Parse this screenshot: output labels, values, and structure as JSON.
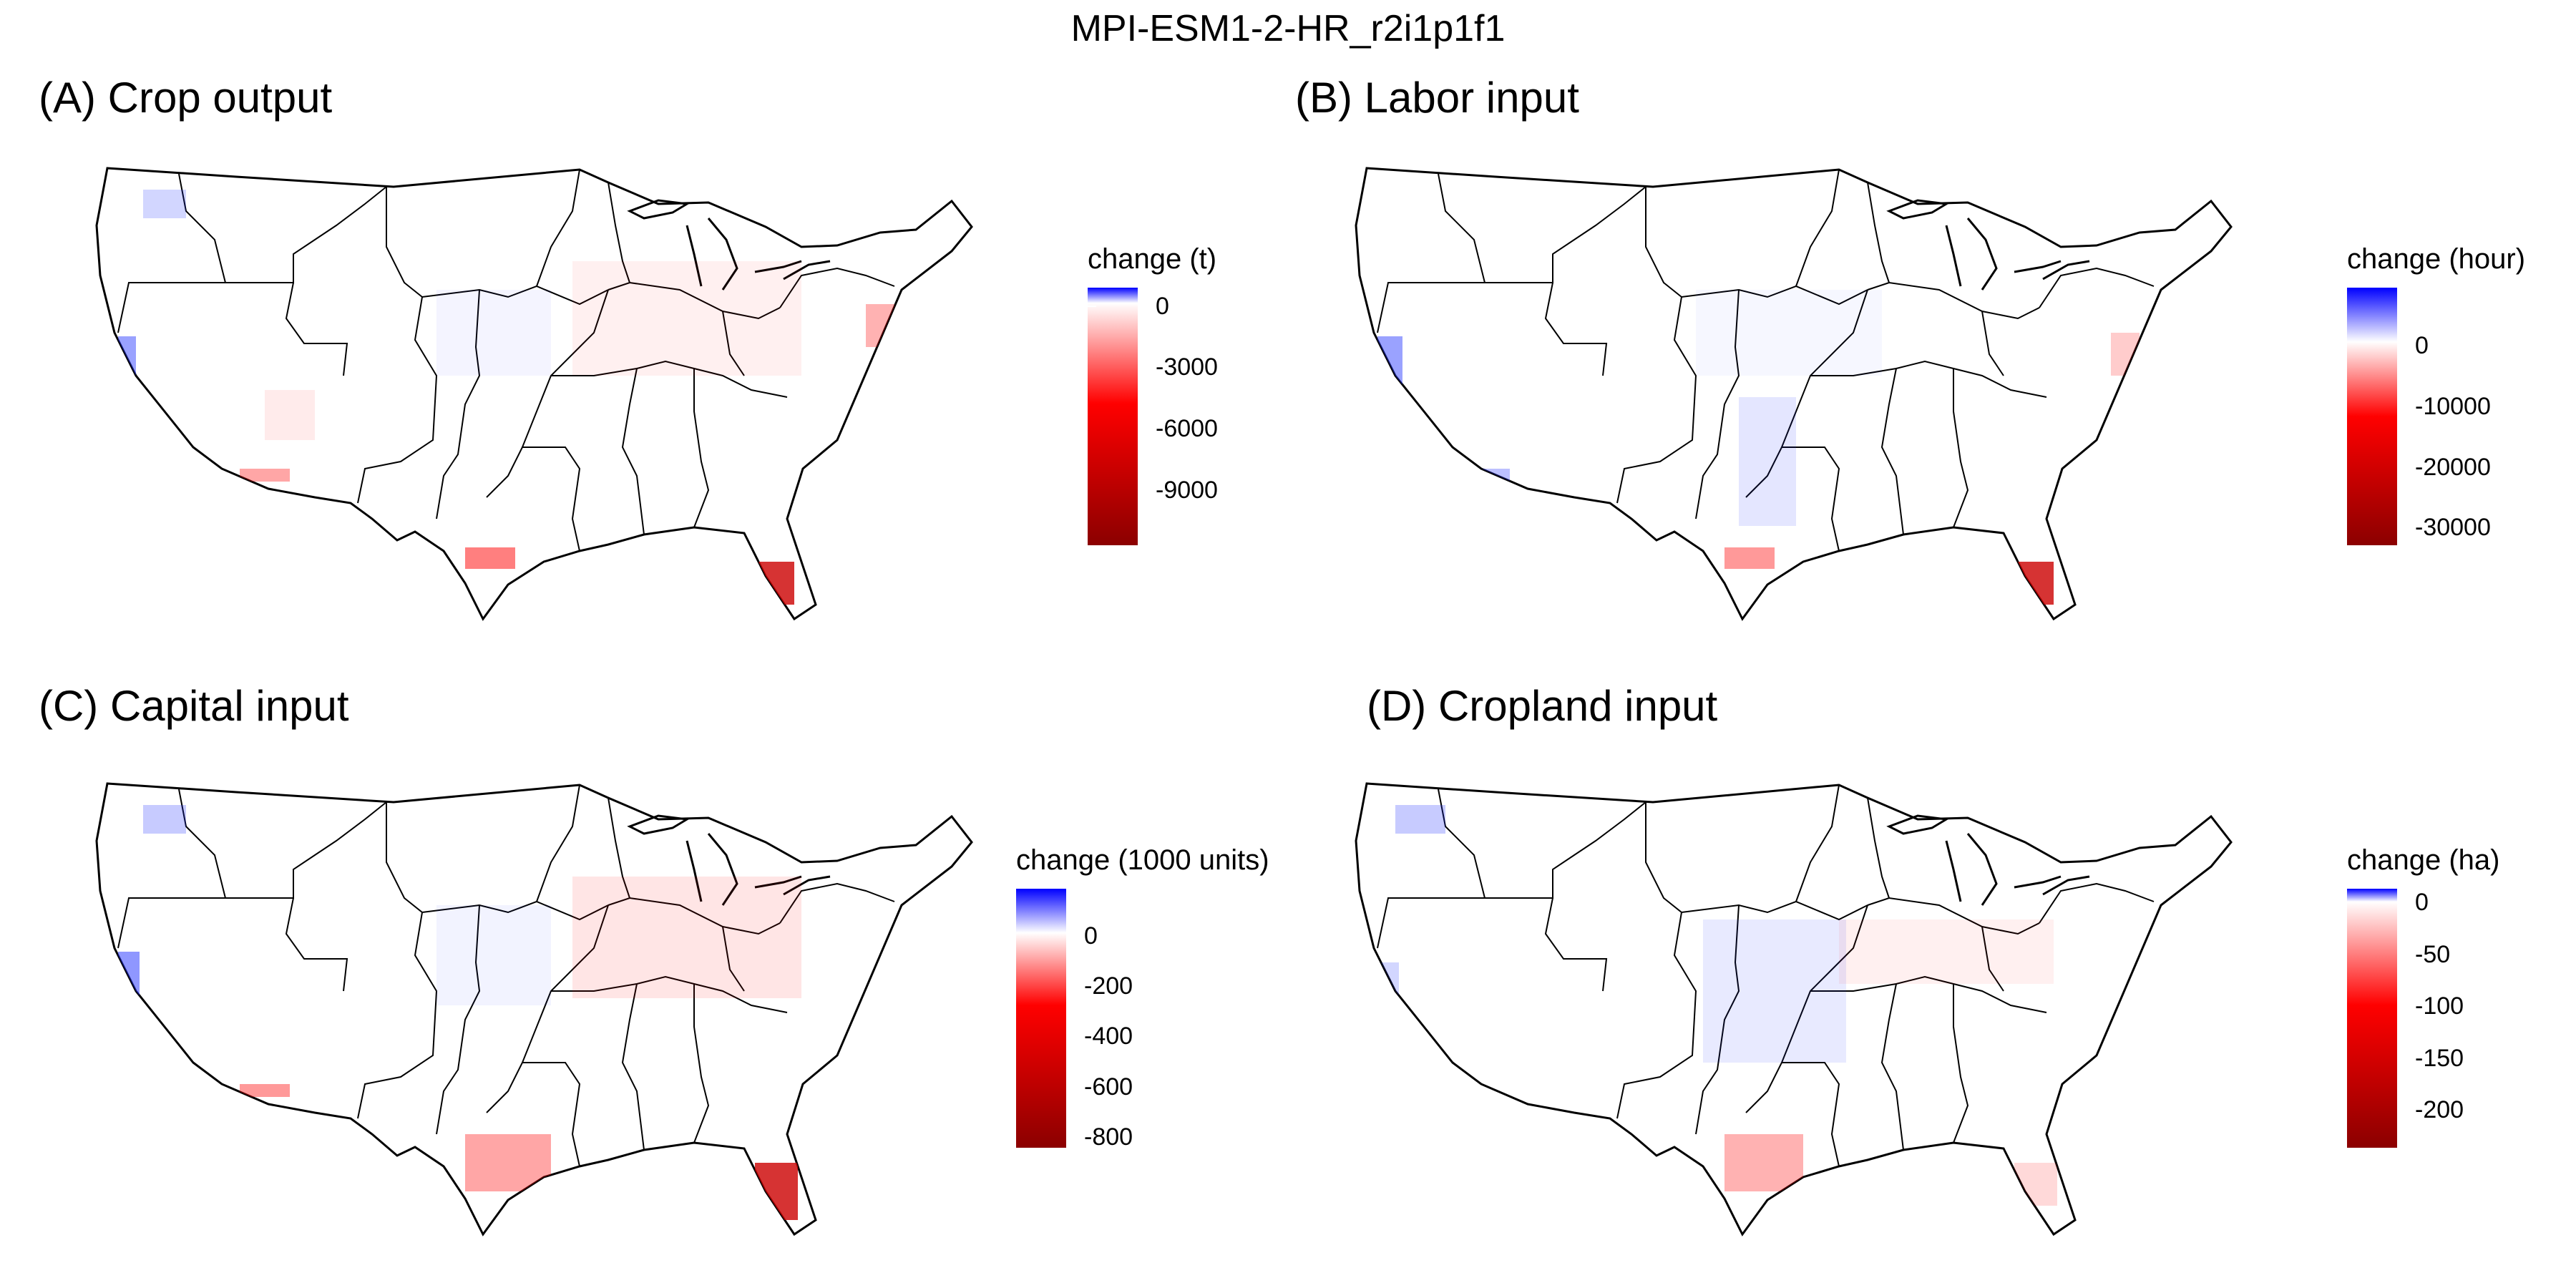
{
  "figure": {
    "title": "MPI-ESM1-2-HR_r2i1p1f1"
  },
  "chart_data": [
    {
      "type": "heatmap",
      "title": "(A) Crop output",
      "legend_title": "change (t)",
      "color_scale": {
        "low": "#8b0000",
        "mid": "#ffffff",
        "high": "#0000ff"
      },
      "range": [
        -11500,
        900
      ],
      "ticks": [
        0,
        -3000,
        -6000,
        -9000
      ],
      "tick_labels": [
        "0",
        "-3000",
        "-6000",
        "-9000"
      ]
    },
    {
      "type": "heatmap",
      "title": "(B) Labor input",
      "legend_title": "change (hour)",
      "color_scale": {
        "low": "#8b0000",
        "mid": "#ffffff",
        "high": "#0000ff"
      },
      "range": [
        -34000,
        9000
      ],
      "ticks": [
        0,
        -10000,
        -20000,
        -30000
      ],
      "tick_labels": [
        "0",
        "-10000",
        "-20000",
        "-30000"
      ]
    },
    {
      "type": "heatmap",
      "title": "(C) Capital input",
      "legend_title": "change (1000 units)",
      "color_scale": {
        "low": "#8b0000",
        "mid": "#ffffff",
        "high": "#0000ff"
      },
      "range": [
        -850,
        170
      ],
      "ticks": [
        0,
        -200,
        -400,
        -600,
        -800
      ],
      "tick_labels": [
        "0",
        "-200",
        "-400",
        "-600",
        "-800"
      ]
    },
    {
      "type": "heatmap",
      "title": "(D) Cropland input",
      "legend_title": "change (ha)",
      "color_scale": {
        "low": "#8b0000",
        "mid": "#ffffff",
        "high": "#0000ff"
      },
      "range": [
        -238,
        8
      ],
      "ticks": [
        0,
        -50,
        -100,
        -150,
        -200
      ],
      "tick_labels": [
        "0",
        "-50",
        "-100",
        "-150",
        "-200"
      ]
    }
  ]
}
